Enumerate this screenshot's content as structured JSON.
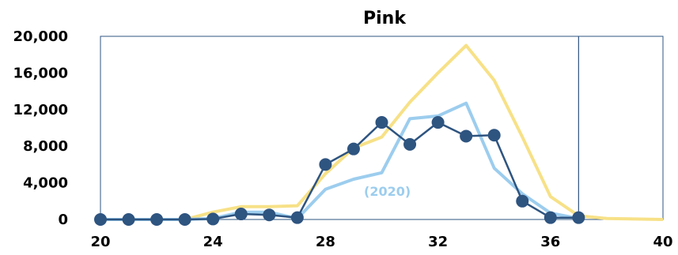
{
  "chart_data": {
    "type": "line",
    "title": "Pink",
    "xlabel": "",
    "ylabel": "",
    "xlim": [
      20,
      40
    ],
    "ylim": [
      0,
      20000
    ],
    "x_ticks": [
      "20",
      "24",
      "28",
      "32",
      "36",
      "40"
    ],
    "y_ticks": [
      "0",
      "4,000",
      "8,000",
      "12,000",
      "16,000",
      "20,000"
    ],
    "grid": false,
    "legend": "none",
    "vertical_marker_x": 37,
    "annotations": [
      {
        "text": "(2020)",
        "x": 30.2,
        "y": 2600,
        "color": "#9ccdee"
      }
    ],
    "series": [
      {
        "color": "#f7e187",
        "markers": false,
        "x": [
          20,
          21,
          22,
          23,
          24,
          25,
          26,
          27,
          28,
          29,
          30,
          31,
          32,
          33,
          34,
          35,
          36,
          37,
          38,
          39,
          40
        ],
        "y": [
          0,
          0,
          0,
          0,
          800,
          1400,
          1400,
          1500,
          5000,
          7800,
          9000,
          12800,
          16000,
          19000,
          15200,
          9000,
          2500,
          400,
          100,
          50,
          0
        ]
      },
      {
        "color": "#9ccdee",
        "markers": false,
        "x": [
          20,
          21,
          22,
          23,
          24,
          25,
          26,
          27,
          28,
          29,
          30,
          31,
          32,
          33,
          34,
          35,
          36,
          37
        ],
        "y": [
          0,
          0,
          0,
          0,
          100,
          800,
          800,
          100,
          3300,
          4400,
          5100,
          11000,
          11300,
          12700,
          5600,
          2800,
          700,
          100
        ]
      },
      {
        "color": "#2e5480",
        "markers": true,
        "x": [
          20,
          21,
          22,
          23,
          24,
          25,
          26,
          27,
          28,
          29,
          30,
          31,
          32,
          33,
          34,
          35,
          36,
          37
        ],
        "y": [
          0,
          0,
          0,
          0,
          50,
          600,
          500,
          200,
          6000,
          7700,
          10600,
          8200,
          10600,
          9100,
          9200,
          2000,
          200,
          200
        ]
      }
    ]
  }
}
